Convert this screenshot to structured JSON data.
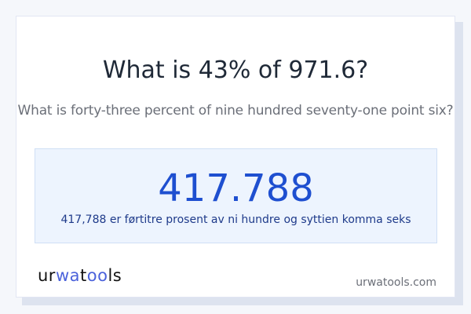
{
  "title": "What is 43% of 971.6?",
  "subtitle": "What is forty-three percent of nine hundred seventy-one point six?",
  "result": {
    "value": "417.788",
    "words": "417,788 er førtitre prosent av ni hundre og syttien komma seks"
  },
  "footer": {
    "logo_text": "urwatools",
    "site": "urwatools.com"
  },
  "colors": {
    "accent": "#1e4fd0",
    "result_bg": "#edf4fe"
  }
}
